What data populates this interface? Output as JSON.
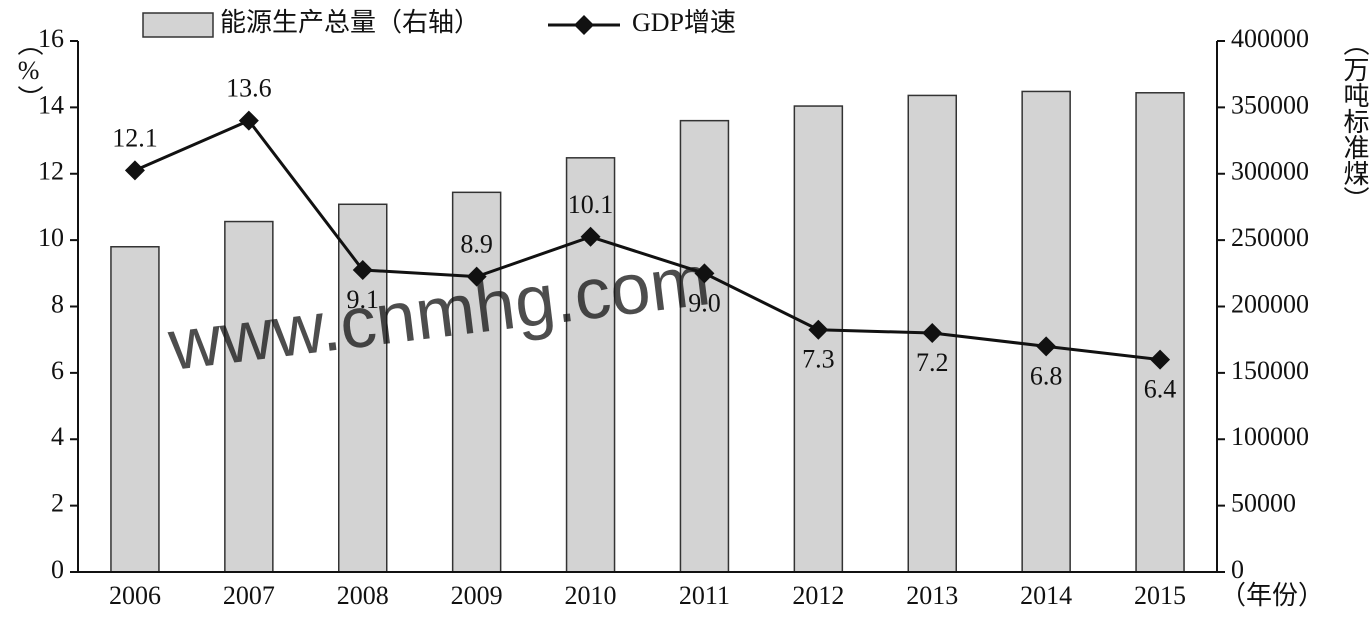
{
  "chart_data": {
    "type": "bar_line",
    "categories": [
      "2006",
      "2007",
      "2008",
      "2009",
      "2010",
      "2011",
      "2012",
      "2013",
      "2014",
      "2015"
    ],
    "series": [
      {
        "name": "能源生产总量（右轴）",
        "type": "bar",
        "color": "#d3d3d3",
        "axis": "y2",
        "values": [
          245000,
          264000,
          277000,
          286000,
          312000,
          340000,
          351000,
          359000,
          362000,
          361000
        ]
      },
      {
        "name": "GDP增速",
        "type": "line",
        "color": "#111111",
        "values": [
          12.1,
          13.6,
          9.1,
          8.9,
          10.1,
          9.0,
          7.3,
          7.2,
          6.8,
          6.4
        ],
        "value_labels": [
          "12.1",
          "13.6",
          "9.1",
          "8.9",
          "10.1",
          "9.0",
          "7.3",
          "7.2",
          "6.8",
          "6.4"
        ]
      }
    ],
    "y_label": "（%）",
    "y2_label": "（万吨标准煤）",
    "x_label": "（年份）",
    "ylim": [
      0,
      16
    ],
    "yticks": [
      0,
      2,
      4,
      6,
      8,
      10,
      12,
      14,
      16
    ],
    "y2lim": [
      0,
      400000
    ],
    "y2ticks": [
      0,
      50000,
      100000,
      150000,
      200000,
      250000,
      300000,
      350000,
      400000
    ],
    "watermark": "www.cnmhg.com"
  }
}
